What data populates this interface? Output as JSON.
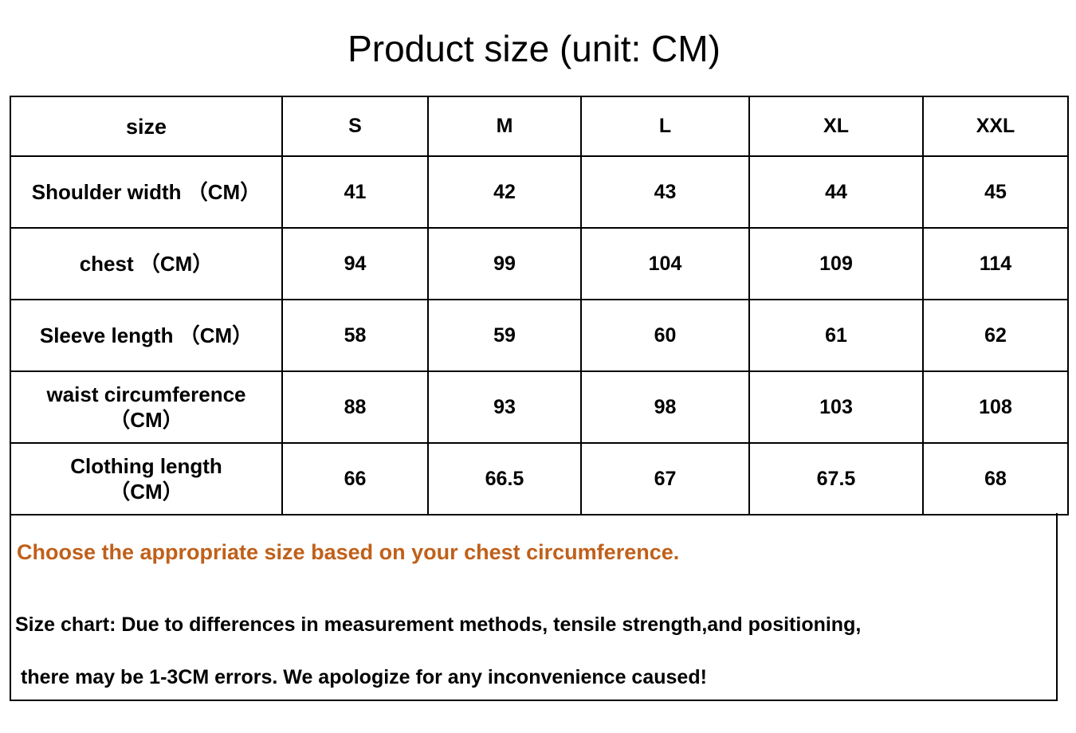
{
  "title": "Product size (unit: CM)",
  "table": {
    "header": [
      "size",
      "S",
      "M",
      "L",
      "XL",
      "XXL"
    ],
    "rows": [
      {
        "label": [
          "Shoulder width （CM）"
        ],
        "values": [
          41,
          42,
          43,
          44,
          45
        ]
      },
      {
        "label": [
          "chest （CM）"
        ],
        "values": [
          94,
          99,
          104,
          109,
          114
        ]
      },
      {
        "label": [
          "Sleeve length （CM）"
        ],
        "values": [
          58,
          59,
          60,
          61,
          62
        ]
      },
      {
        "label": [
          "waist circumference",
          "（CM）"
        ],
        "values": [
          88,
          93,
          98,
          103,
          108
        ]
      },
      {
        "label": [
          "Clothing length",
          "（CM）"
        ],
        "values": [
          66,
          66.5,
          67,
          67.5,
          68
        ]
      }
    ]
  },
  "notes": {
    "highlight": "Choose the appropriate size based on your chest circumference.",
    "lines": [
      "Size chart: Due to differences in measurement methods, tensile strength,and positioning,",
      "there may be 1-3CM errors. We apologize for any inconvenience caused!"
    ]
  }
}
